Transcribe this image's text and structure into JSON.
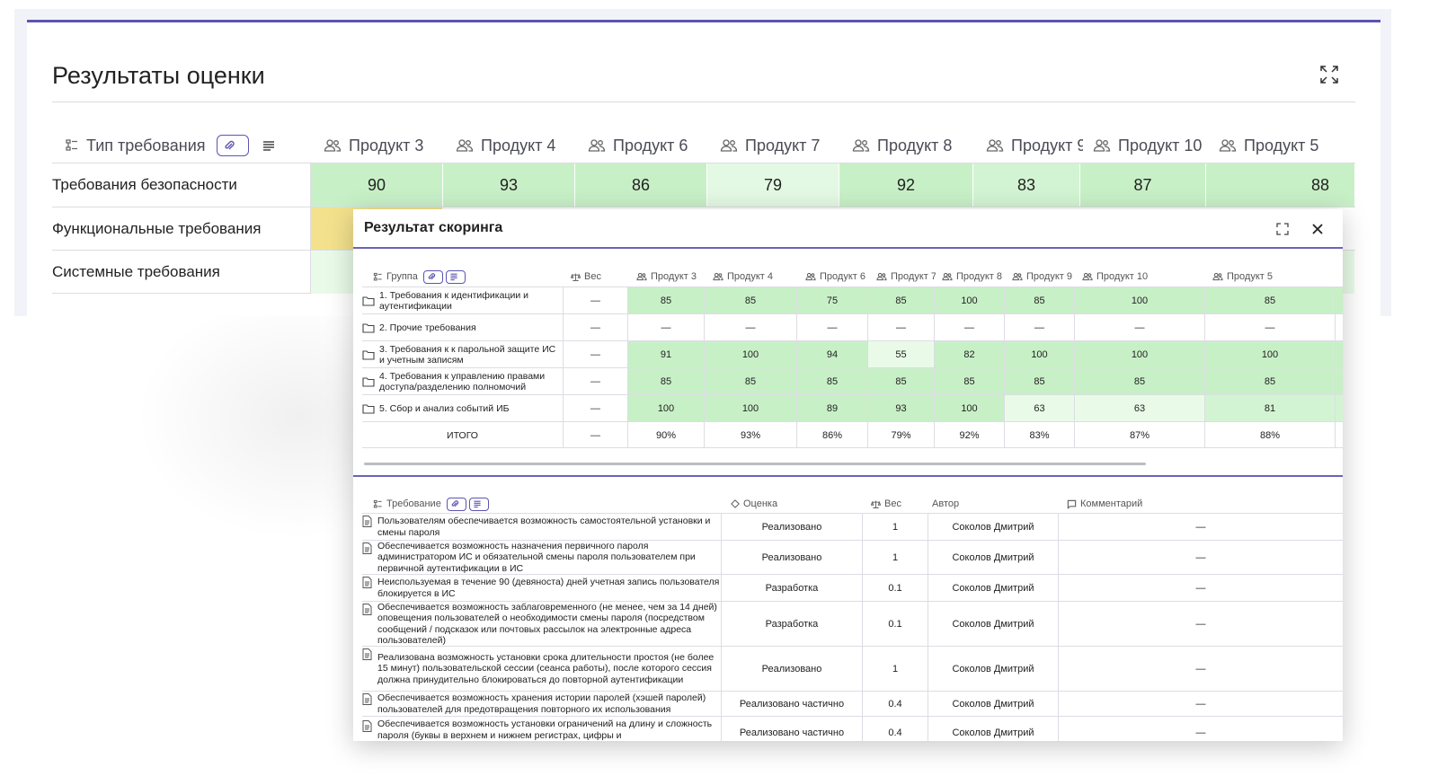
{
  "page": {
    "title": "Результаты оценки",
    "column_header": "Тип требования",
    "products": [
      "Продукт 3",
      "Продукт 4",
      "Продукт 6",
      "Продукт 7",
      "Продукт 8",
      "Продукт 9",
      "Продукт 10",
      "Продукт 5"
    ],
    "rows": [
      {
        "label": "Требования безопасности",
        "values": [
          "90",
          "93",
          "86",
          "79",
          "92",
          "83",
          "87",
          "88"
        ]
      },
      {
        "label": "Функциональные требования",
        "values": [
          "",
          "",
          "",
          "",
          "",
          "",
          "",
          ""
        ]
      },
      {
        "label": "Системные требования",
        "values": [
          "",
          "",
          "",
          "",
          "",
          "",
          "",
          ""
        ]
      }
    ]
  },
  "modal": {
    "title": "Результат скоринга",
    "groups_table": {
      "header_group": "Группа",
      "header_weight": "Вес",
      "products": [
        "Продукт 3",
        "Продукт 4",
        "Продукт 6",
        "Продукт 7",
        "Продукт 8",
        "Продукт 9",
        "Продукт 10",
        "Продукт 5"
      ],
      "rows": [
        {
          "group": "1. Требования к идентификации и аутентификации",
          "weight": "—",
          "values": [
            "85",
            "85",
            "75",
            "85",
            "100",
            "85",
            "100",
            "85"
          ]
        },
        {
          "group": "2. Прочие требования",
          "weight": "—",
          "values": [
            "—",
            "—",
            "—",
            "—",
            "—",
            "—",
            "—",
            "—"
          ]
        },
        {
          "group": "3. Требования к к парольной защите ИС и учетным записям",
          "weight": "—",
          "values": [
            "91",
            "100",
            "94",
            "55",
            "82",
            "100",
            "100",
            "100"
          ]
        },
        {
          "group": "4. Требования к управлению правами доступа/разделению полномочий",
          "weight": "—",
          "values": [
            "85",
            "85",
            "85",
            "85",
            "85",
            "85",
            "85",
            "85"
          ]
        },
        {
          "group": "5. Сбор и анализ событий ИБ",
          "weight": "—",
          "values": [
            "100",
            "100",
            "89",
            "93",
            "100",
            "63",
            "63",
            "81"
          ]
        }
      ],
      "total": {
        "label": "ИТОГО",
        "weight": "—",
        "values": [
          "90%",
          "93%",
          "86%",
          "79%",
          "92%",
          "83%",
          "87%",
          "88%"
        ]
      }
    },
    "req_table": {
      "header_requirement": "Требование",
      "header_score": "Оценка",
      "header_weight": "Вес",
      "header_author": "Автор",
      "header_comment": "Комментарий",
      "rows": [
        {
          "text": "Пользователям обеспечивается возможность самостоятельной установки и смены пароля",
          "score": "Реализовано",
          "weight": "1",
          "author": "Соколов Дмитрий",
          "comment": "—"
        },
        {
          "text": "Обеспечивается возможность назначения первичного пароля администратором ИС и обязательной смены пароля пользователем при первичной аутентификации в ИС",
          "score": "Реализовано",
          "weight": "1",
          "author": "Соколов Дмитрий",
          "comment": "—"
        },
        {
          "text": "Неиспользуемая в течение 90 (девяноста) дней учетная запись пользователя блокируется в ИС",
          "score": "Разработка",
          "weight": "0.1",
          "author": "Соколов Дмитрий",
          "comment": "—"
        },
        {
          "text": "Обеспечивается возможность заблаговременного (не менее, чем за 14 дней) оповещения пользователей о необходимости смены пароля (посредством сообщений / подсказок или почтовых рассылок на электронные адреса пользователей)",
          "score": "Разработка",
          "weight": "0.1",
          "author": "Соколов Дмитрий",
          "comment": "—"
        },
        {
          "text": "Реализована возможность установки срока длительности простоя (не более 15 минут) пользовательской сессии (сеанса работы), после которого сессия должна принудительно блокироваться до повторной аутентификации",
          "score": "Реализовано",
          "weight": "1",
          "author": "Соколов Дмитрий",
          "comment": "—"
        },
        {
          "text": "Обеспечивается возможность хранения истории паролей (хэшей паролей) пользователей для предотвращения повторного их использования",
          "score": "Реализовано частично",
          "weight": "0.4",
          "author": "Соколов Дмитрий",
          "comment": "—"
        },
        {
          "text": "Обеспечивается возможность установки ограничений на длину и сложность пароля (буквы в верхнем и нижнем регистрах, цифры и",
          "score": "Реализовано частично",
          "weight": "0.4",
          "author": "Соколов Дмитрий",
          "comment": "—"
        }
      ]
    }
  },
  "colors": {
    "accent": "#5b55b0",
    "green_strong": "#c8f0c7",
    "green_mid": "#d3f4d2",
    "green_light": "#e9fbe8",
    "yellow": "#f3e18d",
    "divider": "#dcdde3"
  },
  "icons": [
    "expand-icon",
    "tree-icon",
    "attachment-icon",
    "lines-icon",
    "users-icon",
    "scale-icon",
    "folder-icon",
    "close-icon",
    "diamond-icon",
    "comment-icon",
    "document-icon"
  ]
}
